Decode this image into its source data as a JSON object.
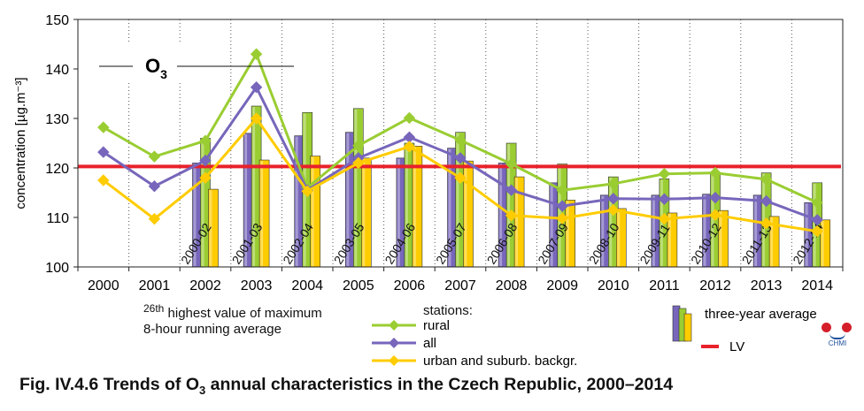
{
  "chart_data": {
    "type": "bar+line",
    "ylabel": "concentration [µg.m⁻³]",
    "ylim": [
      100,
      150
    ],
    "yticks": [
      100,
      110,
      120,
      130,
      140,
      150
    ],
    "x": [
      "2000",
      "2001",
      "2002",
      "2003",
      "2004",
      "2005",
      "2006",
      "2007",
      "2008",
      "2009",
      "2010",
      "2011",
      "2012",
      "2013",
      "2014"
    ],
    "lines": [
      {
        "name": "rural",
        "color": "#9acd32",
        "values": [
          128.2,
          122.3,
          125.5,
          143.0,
          116.0,
          124.5,
          130.1,
          125.6,
          120.8,
          115.5,
          116.8,
          118.8,
          119.0,
          117.7,
          113.0
        ]
      },
      {
        "name": "all",
        "color": "#7766bb",
        "values": [
          123.2,
          116.3,
          121.5,
          136.3,
          115.5,
          122.0,
          126.2,
          122.0,
          115.5,
          112.3,
          113.8,
          113.7,
          114.0,
          113.3,
          109.5
        ]
      },
      {
        "name": "urban and suburb. backgr.",
        "color": "#ffcc00",
        "values": [
          117.5,
          109.7,
          118.0,
          130.0,
          115.3,
          121.0,
          124.3,
          118.0,
          110.4,
          109.8,
          111.5,
          109.7,
          110.5,
          108.8,
          107.2
        ]
      }
    ],
    "bars": {
      "categories": [
        "2000-02",
        "2001-03",
        "2002-04",
        "2003-05",
        "2004-06",
        "2005-07",
        "2006-08",
        "2007-09",
        "2008-10",
        "2009-11",
        "2010-12",
        "2011-13",
        "2012-14"
      ],
      "centers": [
        "2002",
        "2003",
        "2004",
        "2005",
        "2006",
        "2007",
        "2008",
        "2009",
        "2010",
        "2011",
        "2012",
        "2013",
        "2014"
      ],
      "series": [
        {
          "name": "all",
          "color": "#7766bb",
          "values": [
            121.0,
            127.0,
            126.5,
            127.2,
            122.0,
            124.0,
            121.0,
            117.0,
            114.5,
            114.5,
            114.7,
            114.5,
            113.0
          ]
        },
        {
          "name": "rural",
          "color": "#9acd32",
          "values": [
            126.0,
            132.5,
            131.2,
            132.0,
            125.0,
            127.2,
            125.0,
            120.8,
            118.2,
            117.8,
            119.0,
            119.0,
            117.0
          ]
        },
        {
          "name": "urban and suburb. backgr.",
          "color": "#ffcc00",
          "values": [
            115.7,
            121.6,
            122.4,
            122.0,
            124.4,
            121.4,
            118.2,
            113.5,
            111.8,
            110.9,
            111.4,
            110.2,
            109.5
          ]
        }
      ]
    },
    "limit": {
      "name": "LV",
      "value": 120.3,
      "color": "#e8212b"
    },
    "grid": true,
    "grid_note": "dotted vertical separators between years"
  },
  "inset_label": {
    "main": "O",
    "sub": "3"
  },
  "notes": {
    "rank_sup": "26th",
    "rank_line1": " highest value of maximum",
    "rank_line2": "8-hour running average",
    "stations_title": "stations:"
  },
  "legend": {
    "three_year": "three-year average",
    "lv": "LV",
    "rural": "rural",
    "all": "all",
    "urban": "urban and suburb. backgr."
  },
  "caption": {
    "prefix": "Fig. IV.4.6  Trends of O",
    "sub": "3",
    "suffix": " annual characteristics in the Czech Republic, 2000–2014"
  },
  "logo": {
    "text": "CHMI"
  }
}
